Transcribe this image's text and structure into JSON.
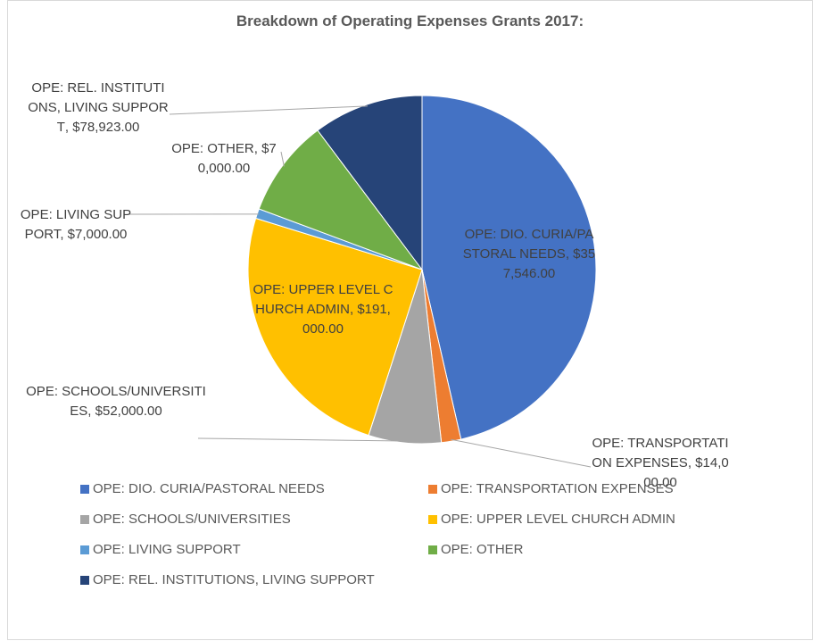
{
  "chart_data": {
    "type": "pie",
    "title": "Breakdown of Operating Expenses Grants 2017:",
    "categories": [
      "OPE: DIO. CURIA/PASTORAL NEEDS",
      "OPE: TRANSPORTATION EXPENSES",
      "OPE: SCHOOLS/UNIVERSITIES",
      "OPE: UPPER LEVEL CHURCH ADMIN",
      "OPE: LIVING SUPPORT",
      "OPE: OTHER",
      "OPE: REL. INSTITUTIONS, LIVING SUPPORT"
    ],
    "values": [
      357546,
      14000,
      52000,
      191000,
      7000,
      70000,
      78923
    ],
    "value_labels": [
      "$357,546.00",
      "$14,000.00",
      "$52,000.00",
      "$191,000.00",
      "$7,000.00",
      "$70,000.00",
      "$78,923.00"
    ],
    "colors": [
      "#4472c4",
      "#ed7d31",
      "#a5a5a5",
      "#ffc000",
      "#5b9bd5",
      "#70ad47",
      "#264478"
    ],
    "legend": "bottom"
  }
}
